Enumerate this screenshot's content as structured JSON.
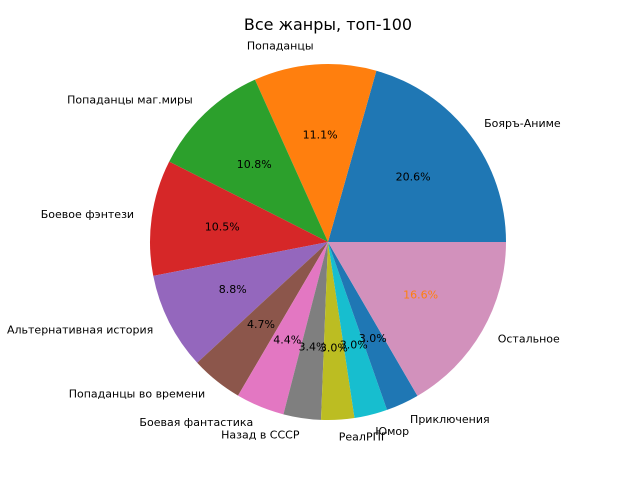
{
  "chart_data": {
    "type": "pie",
    "title": "Все жанры, топ-100",
    "start_angle_deg": 0,
    "direction": "counterclockwise",
    "slices": [
      {
        "label": "Бояръ-Аниме",
        "value": 20.6,
        "pct_label": "20.6%",
        "color": "#1f77b4",
        "pct_color": "#000000"
      },
      {
        "label": "Попаданцы",
        "value": 11.1,
        "pct_label": "11.1%",
        "color": "#ff7f0e",
        "pct_color": "#000000"
      },
      {
        "label": "Попаданцы маг.миры",
        "value": 10.8,
        "pct_label": "10.8%",
        "color": "#2ca02c",
        "pct_color": "#000000"
      },
      {
        "label": "Боевое фэнтези",
        "value": 10.5,
        "pct_label": "10.5%",
        "color": "#d62728",
        "pct_color": "#000000"
      },
      {
        "label": "Альтернативная история",
        "value": 8.8,
        "pct_label": "8.8%",
        "color": "#9467bd",
        "pct_color": "#000000"
      },
      {
        "label": "Попаданцы во времени",
        "value": 4.7,
        "pct_label": "4.7%",
        "color": "#8c564b",
        "pct_color": "#000000"
      },
      {
        "label": "Боевая фантастика",
        "value": 4.4,
        "pct_label": "4.4%",
        "color": "#e377c2",
        "pct_color": "#000000"
      },
      {
        "label": "Назад в СССР",
        "value": 3.4,
        "pct_label": "3.4%",
        "color": "#7f7f7f",
        "pct_color": "#000000"
      },
      {
        "label": "РеалРПГ",
        "value": 3.0,
        "pct_label": "3.0%",
        "color": "#bcbd22",
        "pct_color": "#000000"
      },
      {
        "label": "Юмор",
        "value": 3.0,
        "pct_label": "3.0%",
        "color": "#17becf",
        "pct_color": "#000000"
      },
      {
        "label": "Приключения",
        "value": 3.0,
        "pct_label": "3.0%",
        "color": "#1f77b4",
        "pct_color": "#000000"
      },
      {
        "label": "Остальное",
        "value": 16.6,
        "pct_label": "16.6%",
        "color": "#d291bc",
        "pct_color": "#ff7f0e"
      }
    ]
  }
}
